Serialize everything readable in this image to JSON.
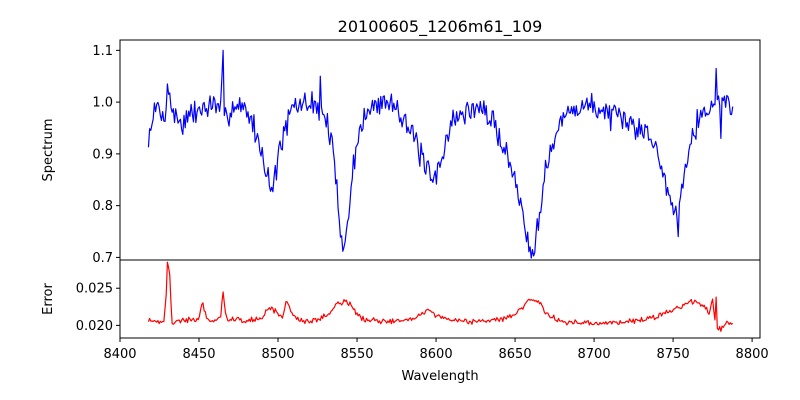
{
  "chart_data": [
    {
      "type": "line",
      "title": "20100605_1206m61_109",
      "xlabel": "",
      "ylabel": "Spectrum",
      "xlim": [
        8400,
        8805
      ],
      "ylim": [
        0.695,
        1.12
      ],
      "yticks": [
        0.7,
        0.8,
        0.9,
        1.0,
        1.1
      ],
      "ytick_labels": [
        "0.7",
        "0.8",
        "0.9",
        "1.0",
        "1.1"
      ],
      "series": [
        {
          "name": "Spectrum",
          "color": "#0000ff",
          "anchors": {
            "x": [
              8418,
              8420,
              8424,
              8428,
              8430,
              8435,
              8440,
              8445,
              8450,
              8455,
              8460,
              8464,
              8465,
              8466,
              8470,
              8475,
              8480,
              8485,
              8490,
              8494,
              8496,
              8498,
              8500,
              8503,
              8506,
              8510,
              8515,
              8520,
              8525,
              8530,
              8534,
              8537,
              8540,
              8542,
              8544,
              8547,
              8550,
              8555,
              8560,
              8565,
              8570,
              8575,
              8580,
              8585,
              8590,
              8595,
              8598,
              8600,
              8603,
              8606,
              8610,
              8615,
              8620,
              8625,
              8630,
              8635,
              8640,
              8645,
              8650,
              8654,
              8657,
              8660,
              8662,
              8665,
              8668,
              8672,
              8676,
              8680,
              8685,
              8690,
              8695,
              8700,
              8705,
              8710,
              8715,
              8720,
              8725,
              8730,
              8735,
              8740,
              8744,
              8748,
              8751,
              8754,
              8757,
              8760,
              8765,
              8770,
              8775,
              8780,
              8785,
              8788
            ],
            "y": [
              0.915,
              0.97,
              0.99,
              0.965,
              1.02,
              0.97,
              0.96,
              0.975,
              0.985,
              0.99,
              0.995,
              0.98,
              1.1,
              0.96,
              0.99,
              0.995,
              0.985,
              0.95,
              0.9,
              0.855,
              0.83,
              0.85,
              0.9,
              0.93,
              0.96,
              0.99,
              0.995,
              1.0,
              0.99,
              0.97,
              0.92,
              0.84,
              0.745,
              0.725,
              0.76,
              0.86,
              0.93,
              0.97,
              0.99,
              1.0,
              1.0,
              0.995,
              0.97,
              0.935,
              0.9,
              0.86,
              0.845,
              0.855,
              0.885,
              0.93,
              0.96,
              0.975,
              0.98,
              0.99,
              0.985,
              0.965,
              0.935,
              0.9,
              0.845,
              0.8,
              0.75,
              0.72,
              0.725,
              0.78,
              0.85,
              0.9,
              0.935,
              0.965,
              0.985,
              0.99,
              0.995,
              0.99,
              0.985,
              0.975,
              0.965,
              0.96,
              0.955,
              0.95,
              0.94,
              0.9,
              0.86,
              0.82,
              0.78,
              0.8,
              0.87,
              0.92,
              0.96,
              0.985,
              0.99,
              1.0,
              1.0,
              0.99
            ]
          },
          "noise": 0.02,
          "spikes": [
            [
              8430,
              1.035
            ],
            [
              8465,
              1.1
            ],
            [
              8527,
              1.05
            ],
            [
              8542,
              0.72
            ],
            [
              8661,
              0.715
            ],
            [
              8777,
              1.065
            ],
            [
              8780,
              0.93
            ],
            [
              8753,
              0.74
            ]
          ]
        }
      ]
    },
    {
      "type": "line",
      "title": "",
      "xlabel": "Wavelength",
      "ylabel": "Error",
      "xlim": [
        8400,
        8805
      ],
      "ylim": [
        0.0183,
        0.0288
      ],
      "yticks": [
        0.02,
        0.025
      ],
      "ytick_labels": [
        "0.020",
        "0.025"
      ],
      "xticks": [
        8400,
        8450,
        8500,
        8550,
        8600,
        8650,
        8700,
        8750,
        8800
      ],
      "xtick_labels": [
        "8400",
        "8450",
        "8500",
        "8550",
        "8600",
        "8650",
        "8700",
        "8750",
        "8800"
      ],
      "series": [
        {
          "name": "Error",
          "color": "#ff0000",
          "anchors": {
            "x": [
              8418,
              8425,
              8428,
              8430,
              8431,
              8433,
              8440,
              8450,
              8452,
              8455,
              8460,
              8464,
              8465,
              8467,
              8470,
              8480,
              8490,
              8495,
              8500,
              8503,
              8505,
              8510,
              8520,
              8530,
              8538,
              8542,
              8546,
              8550,
              8555,
              8565,
              8580,
              8590,
              8595,
              8600,
              8610,
              8620,
              8630,
              8640,
              8650,
              8655,
              8660,
              8665,
              8670,
              8680,
              8690,
              8700,
              8710,
              8720,
              8730,
              8740,
              8745,
              8750,
              8755,
              8760,
              8765,
              8770,
              8773,
              8775,
              8777,
              8780,
              8785,
              8788
            ],
            "y": [
              0.0208,
              0.0205,
              0.0207,
              0.026,
              0.0285,
              0.0203,
              0.0207,
              0.0208,
              0.0232,
              0.0208,
              0.0207,
              0.0212,
              0.0245,
              0.021,
              0.0208,
              0.0206,
              0.021,
              0.0225,
              0.0215,
              0.021,
              0.0235,
              0.021,
              0.0205,
              0.0212,
              0.023,
              0.0232,
              0.0228,
              0.0215,
              0.0207,
              0.0205,
              0.0208,
              0.0213,
              0.0222,
              0.0213,
              0.0208,
              0.0205,
              0.0206,
              0.0208,
              0.0215,
              0.0225,
              0.0235,
              0.0233,
              0.0215,
              0.0205,
              0.0203,
              0.0202,
              0.0203,
              0.0205,
              0.0208,
              0.0212,
              0.0217,
              0.022,
              0.0225,
              0.023,
              0.0232,
              0.0225,
              0.0215,
              0.0235,
              0.02,
              0.0195,
              0.0205,
              0.0201
            ]
          },
          "noise": 0.0003,
          "spikes": [
            [
              8430,
              0.0285
            ],
            [
              8465,
              0.0245
            ],
            [
              8777,
              0.0238
            ],
            [
              8780,
              0.0192
            ]
          ]
        }
      ]
    }
  ]
}
